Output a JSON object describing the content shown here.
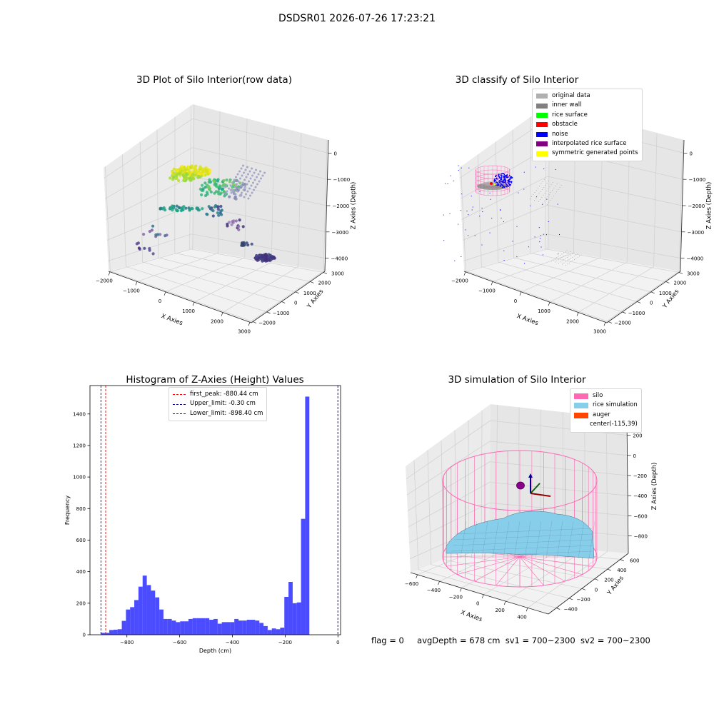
{
  "suptitle": "DSDSR01 2026-07-26 17:23:21",
  "panels": {
    "raw": {
      "title": "3D Plot of Silo Interior(row data)",
      "xlabel": "X Axies",
      "ylabel": "Y Axies",
      "zlabel": "Z Axies (Depth)",
      "xticks": [
        "−2000",
        "−1000",
        "0",
        "1000",
        "2000",
        "3000"
      ],
      "yticks": [
        "−2000",
        "−1000",
        "0",
        "1000",
        "2000",
        "3000"
      ],
      "zticks": [
        "0",
        "−1000",
        "−2000",
        "−3000",
        "−4000"
      ]
    },
    "classify": {
      "title": "3D classify of Silo Interior",
      "xlabel": "X Axies",
      "ylabel": "Y Axies",
      "zlabel": "Z Axies (Depth)",
      "xticks": [
        "−2000",
        "−1000",
        "0",
        "1000",
        "2000",
        "3000"
      ],
      "yticks": [
        "−2000",
        "−1000",
        "0",
        "1000",
        "2000",
        "3000"
      ],
      "zticks": [
        "0",
        "−1000",
        "−2000",
        "−3000",
        "−4000"
      ],
      "legend": [
        {
          "label": "original data",
          "color": "#b0b0b0"
        },
        {
          "label": "inner wall",
          "color": "#808080"
        },
        {
          "label": "rice surface",
          "color": "#00ff00"
        },
        {
          "label": "obstacle",
          "color": "#ff0000"
        },
        {
          "label": "noise",
          "color": "#0000ff"
        },
        {
          "label": "interpolated rice surface",
          "color": "#800080"
        },
        {
          "label": "symmetric generated points",
          "color": "#ffff00"
        }
      ]
    },
    "histogram": {
      "title": "Histogram of Z-Axies (Height) Values",
      "legend": [
        {
          "label": "first_peak: -880.44 cm",
          "color": "#ff0000"
        },
        {
          "label": "Upper_limit: -0.30 cm",
          "color": "#00008b"
        },
        {
          "label": "Lower_limit: -898.40 cm",
          "color": "#0000ff"
        }
      ]
    },
    "simulation": {
      "title": "3D simulation of Silo Interior",
      "xlabel": "X Axies",
      "ylabel": "Y Axies",
      "zlabel": "Z Axies (Depth)",
      "xticks": [
        "−600",
        "−400",
        "−200",
        "0",
        "200",
        "400"
      ],
      "yticks": [
        "−400",
        "−200",
        "0",
        "200",
        "400",
        "600"
      ],
      "zticks": [
        "200",
        "0",
        "−200",
        "−400",
        "−600",
        "−800"
      ],
      "legend": [
        {
          "label": "silo",
          "color": "#ff69b4",
          "type": "patch"
        },
        {
          "label": "rice simulation",
          "color": "#87ceeb",
          "type": "patch"
        },
        {
          "label": "auger",
          "color": "#ff4500",
          "type": "patch"
        },
        {
          "label": "center(-115,39)",
          "color": "",
          "type": "none"
        }
      ]
    }
  },
  "status": {
    "flag": "flag = 0",
    "avg": "avgDepth = 678 cm",
    "sv1": "sv1 = 700~2300",
    "sv2": "sv2 = 700~2300"
  },
  "chart_data": [
    {
      "type": "scatter",
      "title": "3D Plot of Silo Interior(row data)",
      "xlabel": "X Axies",
      "ylabel": "Y Axies",
      "zlabel": "Z Axies (Depth)",
      "xlim": [
        -2000,
        3000
      ],
      "ylim": [
        -2000,
        3000
      ],
      "zlim": [
        -4500,
        0
      ]
    },
    {
      "type": "scatter",
      "title": "3D classify of Silo Interior",
      "xlabel": "X Axies",
      "ylabel": "Y Axies",
      "zlabel": "Z Axies (Depth)",
      "xlim": [
        -2000,
        3000
      ],
      "ylim": [
        -2000,
        3000
      ],
      "zlim": [
        -4500,
        0
      ],
      "series": [
        {
          "name": "original data"
        },
        {
          "name": "inner wall"
        },
        {
          "name": "rice surface"
        },
        {
          "name": "obstacle"
        },
        {
          "name": "noise"
        },
        {
          "name": "interpolated rice surface"
        },
        {
          "name": "symmetric generated points"
        }
      ]
    },
    {
      "type": "bar",
      "title": "Histogram of Z-Axies (Height) Values",
      "xlabel": "Depth (cm)",
      "ylabel": "Frequency",
      "xlim": [
        -940,
        10
      ],
      "ylim": [
        0,
        1580
      ],
      "xticks": [
        -800,
        -600,
        -400,
        -200,
        0
      ],
      "yticks": [
        0,
        200,
        400,
        600,
        800,
        1000,
        1200,
        1400
      ],
      "bin_start": -898.4,
      "bin_width": 15.8,
      "values": [
        12,
        12,
        30,
        32,
        35,
        88,
        160,
        175,
        220,
        305,
        375,
        315,
        280,
        237,
        160,
        100,
        100,
        90,
        80,
        85,
        85,
        100,
        105,
        105,
        105,
        105,
        95,
        100,
        70,
        80,
        80,
        80,
        100,
        90,
        90,
        95,
        95,
        90,
        75,
        55,
        30,
        40,
        35,
        45,
        240,
        335,
        200,
        205,
        735,
        1510
      ],
      "vlines": [
        {
          "name": "first_peak: -880.44 cm",
          "x": -880.44
        },
        {
          "name": "Upper_limit: -0.30 cm",
          "x": -0.3
        },
        {
          "name": "Lower_limit: -898.40 cm",
          "x": -898.4
        }
      ]
    },
    {
      "type": "surface",
      "title": "3D simulation of Silo Interior",
      "xlabel": "X Axies",
      "ylabel": "Y Axies",
      "zlabel": "Z Axies (Depth)",
      "xlim": [
        -700,
        500
      ],
      "ylim": [
        -500,
        700
      ],
      "zlim": [
        -900,
        300
      ],
      "series": [
        {
          "name": "silo"
        },
        {
          "name": "rice simulation"
        },
        {
          "name": "auger"
        }
      ],
      "center": [
        -115,
        39
      ]
    }
  ]
}
